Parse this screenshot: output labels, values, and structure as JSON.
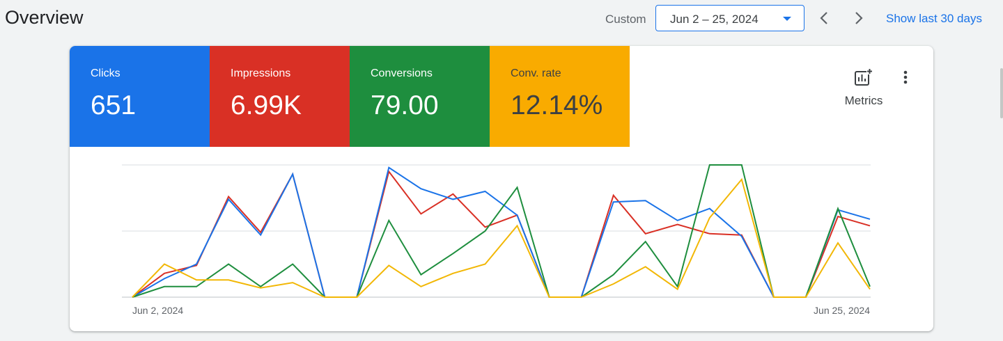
{
  "header": {
    "title": "Overview",
    "custom_label": "Custom",
    "date_range": "Jun 2 – 25, 2024",
    "show_last": "Show last 30 days",
    "prev_icon": "chevron-left-icon",
    "next_icon": "chevron-right-icon"
  },
  "tiles": [
    {
      "label": "Clicks",
      "value": "651",
      "bg": "#1a73e8",
      "fg": "#ffffff"
    },
    {
      "label": "Impressions",
      "value": "6.99K",
      "bg": "#d93025",
      "fg": "#ffffff"
    },
    {
      "label": "Conversions",
      "value": "79.00",
      "bg": "#1e8e3e",
      "fg": "#ffffff"
    },
    {
      "label": "Conv. rate",
      "value": "12.14%",
      "bg": "#f9ab00",
      "fg": "#3c4043"
    }
  ],
  "toolbar": {
    "metrics_label": "Metrics",
    "metrics_icon": "add-chart-icon",
    "more_icon": "more-vert-icon"
  },
  "chart_data": {
    "type": "line",
    "x_start_label": "Jun 2, 2024",
    "x_end_label": "Jun 25, 2024",
    "grid": true,
    "legend": "none",
    "y_axis_labels_shown": false,
    "ylim": [
      0,
      1
    ],
    "x": [
      "Jun 2",
      "Jun 3",
      "Jun 4",
      "Jun 5",
      "Jun 6",
      "Jun 7",
      "Jun 8",
      "Jun 9",
      "Jun 10",
      "Jun 11",
      "Jun 12",
      "Jun 13",
      "Jun 14",
      "Jun 15",
      "Jun 16",
      "Jun 17",
      "Jun 18",
      "Jun 19",
      "Jun 20",
      "Jun 21",
      "Jun 22",
      "Jun 23",
      "Jun 24",
      "Jun 25"
    ],
    "series": [
      {
        "metric": "Impressions",
        "color": "#d93025",
        "values": [
          0,
          0.18,
          0.24,
          0.76,
          0.49,
          0.93,
          0,
          0,
          0.95,
          0.63,
          0.78,
          0.53,
          0.62,
          0,
          0,
          0.77,
          0.48,
          0.55,
          0.48,
          0.47,
          0,
          0,
          0.61,
          0.54
        ]
      },
      {
        "metric": "Clicks",
        "color": "#1a73e8",
        "values": [
          0,
          0.14,
          0.25,
          0.74,
          0.47,
          0.93,
          0,
          0,
          0.98,
          0.82,
          0.74,
          0.8,
          0.62,
          0,
          0,
          0.72,
          0.73,
          0.58,
          0.67,
          0.46,
          0,
          0,
          0.66,
          0.59
        ]
      },
      {
        "metric": "Conversions",
        "color": "#1e8e3e",
        "values": [
          0,
          0.08,
          0.08,
          0.25,
          0.08,
          0.25,
          0,
          0,
          0.58,
          0.17,
          0.33,
          0.5,
          0.83,
          0,
          0,
          0.17,
          0.42,
          0.08,
          1.0,
          1.0,
          0,
          0,
          0.67,
          0.08
        ]
      },
      {
        "metric": "Conv. rate",
        "color": "#f2b705",
        "values": [
          0,
          0.25,
          0.13,
          0.13,
          0.07,
          0.11,
          0,
          0,
          0.24,
          0.08,
          0.18,
          0.25,
          0.54,
          0,
          0,
          0.1,
          0.23,
          0.06,
          0.6,
          0.89,
          0,
          0,
          0.41,
          0.06
        ]
      }
    ]
  }
}
